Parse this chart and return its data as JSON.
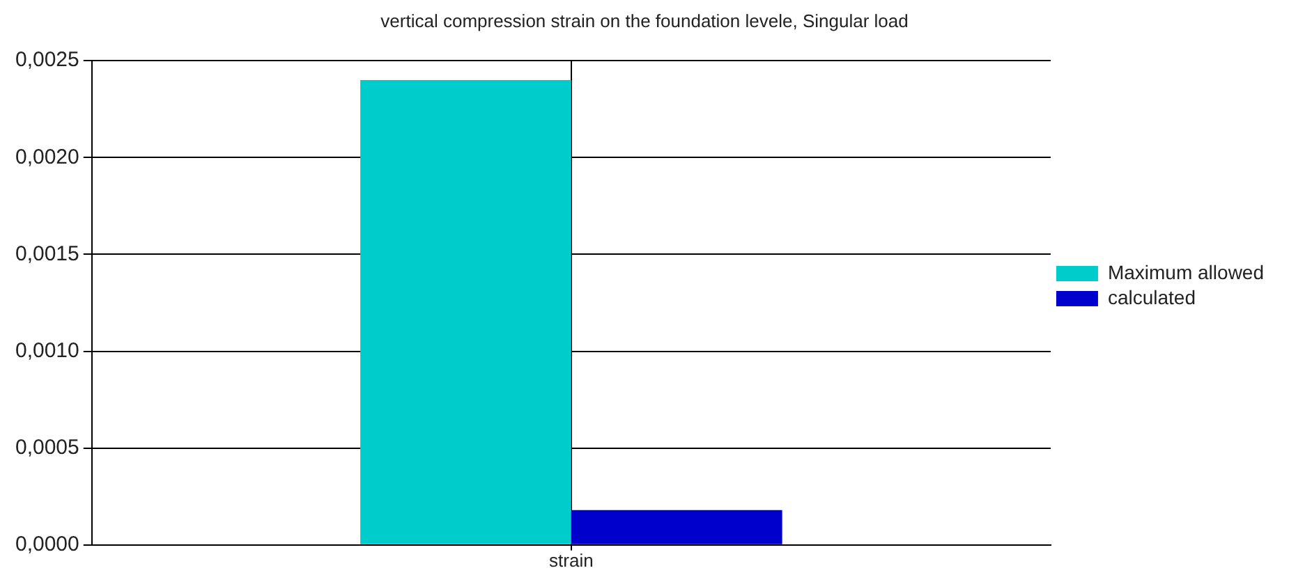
{
  "chart_data": {
    "type": "bar",
    "title": "vertical compression strain on the foundation levele, Singular load",
    "categories": [
      "strain"
    ],
    "series": [
      {
        "name": "Maximum allowed",
        "color": "#00cccc",
        "values": [
          0.0024
        ]
      },
      {
        "name": "calculated",
        "color": "#0000cc",
        "values": [
          0.00018
        ]
      }
    ],
    "ylim": [
      0,
      0.0025
    ],
    "yticks": [
      {
        "value": 0,
        "label": "0,0000"
      },
      {
        "value": 0.0005,
        "label": "0,0005"
      },
      {
        "value": 0.001,
        "label": "0,0010"
      },
      {
        "value": 0.0015,
        "label": "0,0015"
      },
      {
        "value": 0.002,
        "label": "0,0020"
      },
      {
        "value": 0.0025,
        "label": "0,0025"
      }
    ],
    "grid": true,
    "legend": "right"
  }
}
